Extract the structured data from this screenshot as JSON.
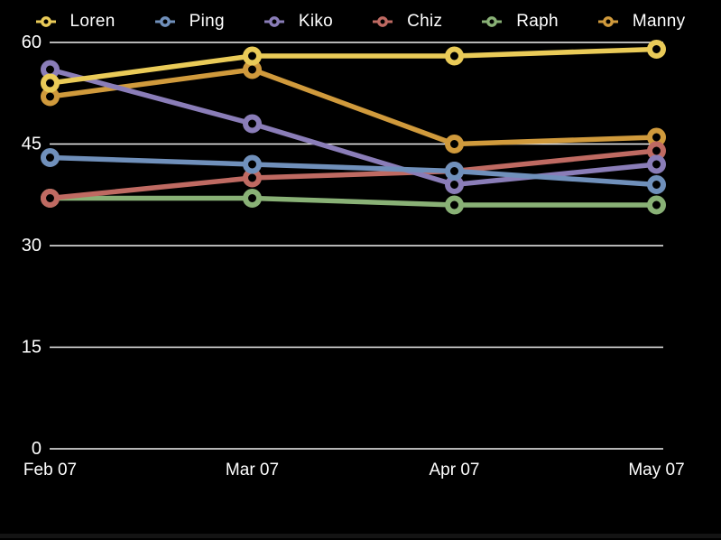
{
  "app": {
    "background": "#000000",
    "text_color": "#ffffff",
    "gridline_color": "#f2f2f2",
    "window_edge_color": "#141414"
  },
  "chart_data": {
    "type": "line",
    "title": "",
    "xlabel": "",
    "ylabel": "",
    "categories": [
      "Feb 07",
      "Mar 07",
      "Apr 07",
      "May 07"
    ],
    "series": [
      {
        "name": "Loren",
        "color": "#EACB58",
        "values": [
          54,
          58,
          58,
          59
        ]
      },
      {
        "name": "Ping",
        "color": "#7090BB",
        "values": [
          43,
          42,
          41,
          39
        ]
      },
      {
        "name": "Kiko",
        "color": "#8A7DB8",
        "values": [
          56,
          48,
          39,
          42
        ]
      },
      {
        "name": "Chiz",
        "color": "#BF6A62",
        "values": [
          37,
          40,
          41,
          44
        ]
      },
      {
        "name": "Raph",
        "color": "#89B176",
        "values": [
          37,
          37,
          36,
          36
        ]
      },
      {
        "name": "Manny",
        "color": "#D09A3C",
        "values": [
          52,
          56,
          45,
          46
        ]
      }
    ],
    "yticks": [
      0,
      15,
      30,
      45,
      60
    ],
    "ylim": [
      0,
      60
    ],
    "grid": "horizontal",
    "legend_position": "top",
    "marker_style": "ring",
    "z_order_note": "first series drawn on top"
  }
}
